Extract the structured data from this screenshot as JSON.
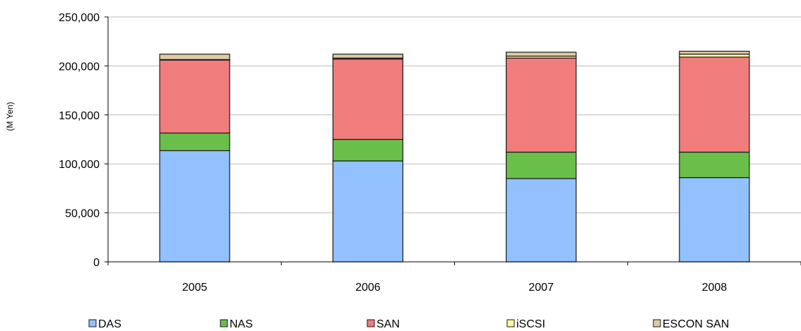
{
  "chart_data": {
    "type": "bar",
    "stacked": true,
    "title": "",
    "xlabel": "",
    "ylabel": "(M Yen)",
    "ylim": [
      0,
      250000
    ],
    "yticks": [
      "0",
      "50,000",
      "100,000",
      "150,000",
      "200,000",
      "250,000"
    ],
    "ytick_values": [
      0,
      50000,
      100000,
      150000,
      200000,
      250000
    ],
    "grid": true,
    "legend_position": "bottom",
    "categories": [
      "2005",
      "2006",
      "2007",
      "2008"
    ],
    "series": [
      {
        "name": "DAS",
        "color": "#93C1FF",
        "values": [
          113500,
          103000,
          85000,
          86000
        ]
      },
      {
        "name": "NAS",
        "color": "#6ABF4B",
        "values": [
          18000,
          22000,
          27000,
          26000
        ]
      },
      {
        "name": "SAN",
        "color": "#F07C7C",
        "values": [
          74500,
          82000,
          96000,
          97000
        ]
      },
      {
        "name": "iSCSI",
        "color": "#FFF9A0",
        "values": [
          500,
          1000,
          2000,
          3000
        ]
      },
      {
        "name": "ESCON SAN",
        "color": "#DCCBA6",
        "values": [
          5500,
          4000,
          4000,
          3000
        ]
      }
    ]
  }
}
